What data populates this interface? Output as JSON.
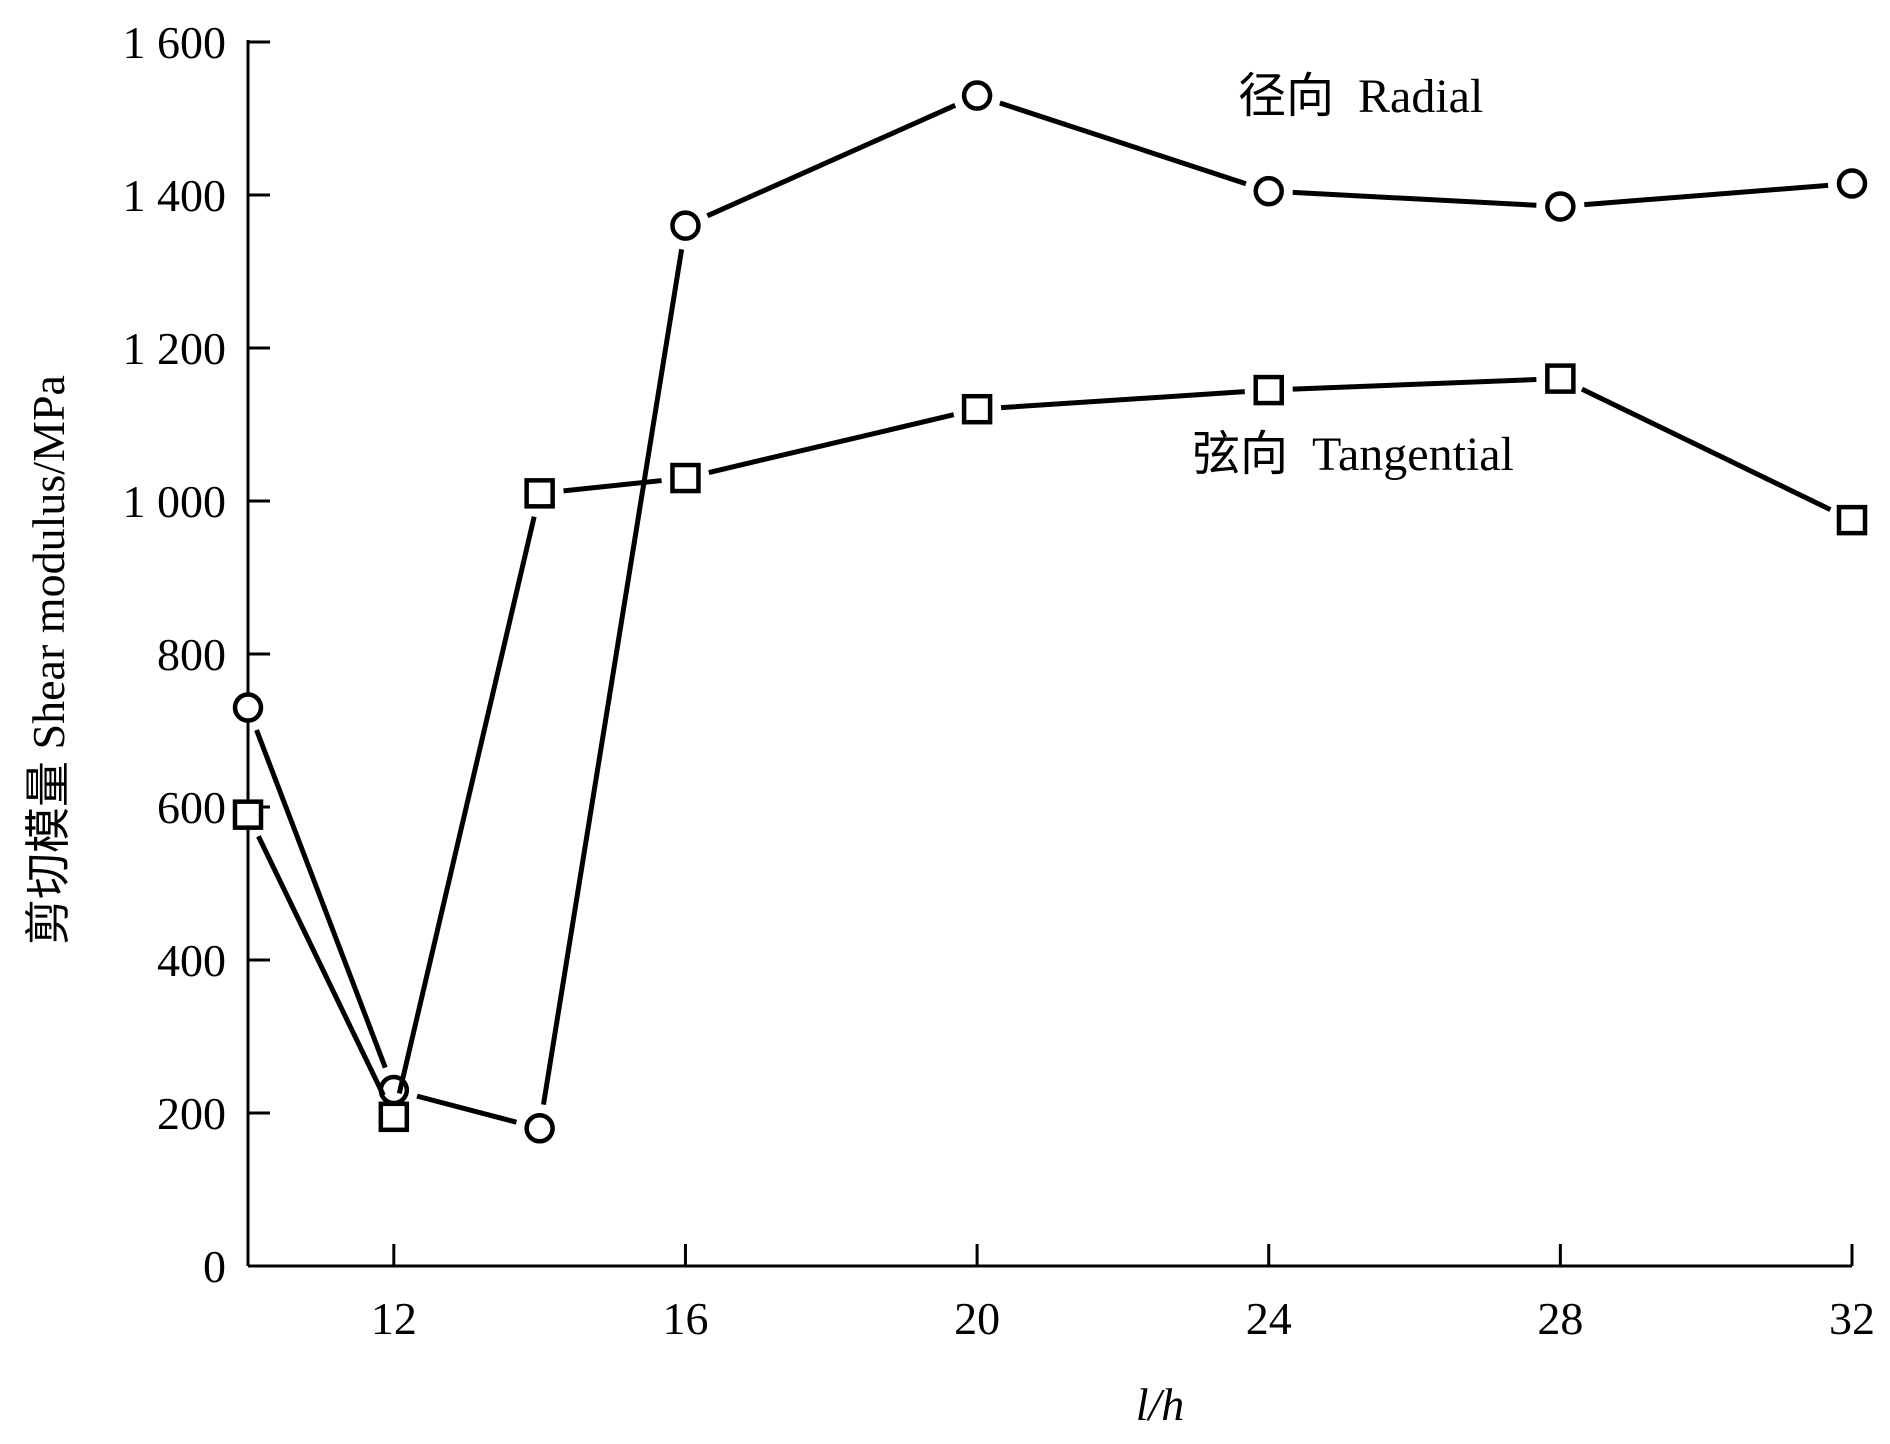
{
  "chart_data": {
    "type": "line",
    "x": [
      10,
      12,
      14,
      16,
      20,
      24,
      28,
      32
    ],
    "xlabel": "l/h",
    "ylabel": "剪切模量  Shear modulus/MPa",
    "xlim": [
      10,
      32
    ],
    "ylim": [
      0,
      1600
    ],
    "x_ticks": [
      12,
      16,
      20,
      24,
      28,
      32
    ],
    "x_tick_labels": [
      "12",
      "16",
      "20",
      "24",
      "28",
      "32"
    ],
    "y_ticks": [
      0,
      200,
      400,
      600,
      800,
      1000,
      1200,
      1400,
      1600
    ],
    "y_tick_labels": [
      "0",
      "200",
      "400",
      "600",
      "800",
      "1 000",
      "1 200",
      "1 400",
      "1 600"
    ],
    "grid": false,
    "series": [
      {
        "name": "径向  Radial",
        "marker": "circle",
        "values": [
          730,
          230,
          180,
          1360,
          1530,
          1405,
          1385,
          1415
        ]
      },
      {
        "name": "弦向  Tangential",
        "marker": "square",
        "values": [
          590,
          195,
          1010,
          1030,
          1120,
          1145,
          1160,
          975
        ]
      }
    ]
  }
}
